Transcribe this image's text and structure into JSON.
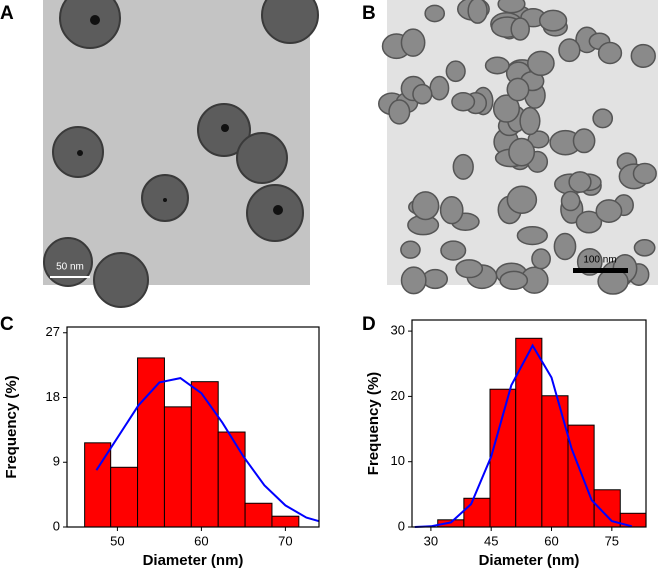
{
  "images": [
    {
      "label": "A",
      "scale_bar": "50 nm"
    },
    {
      "label": "B",
      "scale_bar": "100 nm"
    }
  ],
  "chart_data": [
    {
      "type": "histogram",
      "panel_label": "C",
      "xlabel": "Diameter (nm)",
      "ylabel": "Frequency (%)",
      "bins": [
        46.1,
        49.2,
        52.4,
        55.6,
        58.8,
        62.0,
        65.2,
        68.4,
        71.6
      ],
      "values": [
        11.7,
        8.3,
        23.5,
        16.7,
        20.2,
        13.2,
        3.3,
        1.5
      ],
      "color": "#ff0000",
      "curve": {
        "x": [
          47.5,
          50,
          52.5,
          55,
          57.5,
          60,
          62.5,
          65,
          67.5,
          70,
          72.5,
          74
        ],
        "values": [
          7.9,
          12.4,
          16.9,
          20.1,
          20.7,
          18.6,
          14.5,
          9.8,
          5.8,
          3.0,
          1.3,
          0.8
        ],
        "color": "#0000ff"
      },
      "xlim": [
        44,
        74
      ],
      "xticks": [
        50,
        60,
        70
      ],
      "ylim": [
        0,
        27.8
      ],
      "yticks": [
        0,
        9,
        18,
        27
      ]
    },
    {
      "type": "histogram",
      "panel_label": "D",
      "xlabel": "Diameter (nm)",
      "ylabel": "Frequency (%)",
      "bins": [
        31.7,
        38.2,
        44.7,
        51.1,
        57.6,
        64.1,
        70.6,
        77.1,
        83.5
      ],
      "values": [
        1.1,
        4.4,
        21.1,
        28.9,
        20.1,
        15.6,
        5.7,
        2.1
      ],
      "color": "#ff0000",
      "curve": {
        "x": [
          26,
          30,
          35,
          40,
          45,
          50,
          55.3,
          60,
          65,
          70,
          75,
          80
        ],
        "values": [
          0.0,
          0.1,
          0.7,
          3.5,
          10.8,
          21.7,
          27.8,
          22.9,
          12.0,
          4.1,
          0.9,
          0.1
        ],
        "color": "#0000ff"
      },
      "xlim": [
        25.3,
        83.5
      ],
      "xticks": [
        30,
        45,
        60,
        75
      ],
      "ylim": [
        0,
        31.7
      ],
      "yticks": [
        0,
        10,
        20,
        30
      ]
    }
  ]
}
